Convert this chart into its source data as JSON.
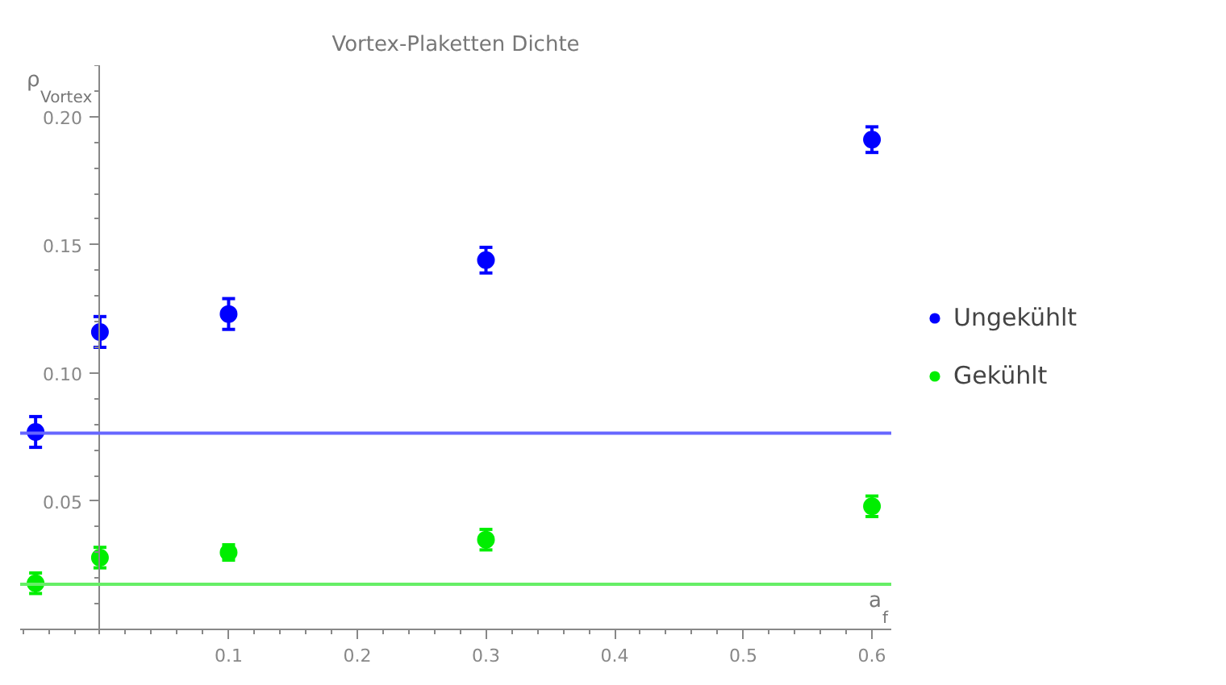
{
  "chart_data": {
    "type": "scatter",
    "title": "Vortex-Plaketten Dichte",
    "xlabel": "a$_{f}$",
    "ylabel": "ρ$_{Vortex}$",
    "x": [
      -0.05,
      0,
      0.1,
      0.3,
      0.6
    ],
    "series": [
      {
        "name": "Ungekühlt",
        "color": "#0000ff",
        "values": [
          0.077,
          0.116,
          0.123,
          0.144,
          0.191
        ],
        "errors": [
          0.006,
          0.006,
          0.006,
          0.005,
          0.005
        ]
      },
      {
        "name": "Gekühlt",
        "color": "#00ee00",
        "values": [
          0.018,
          0.028,
          0.03,
          0.035,
          0.048
        ],
        "errors": [
          0.004,
          0.004,
          0.003,
          0.004,
          0.004
        ]
      }
    ],
    "ref_lines": [
      {
        "axis": "y",
        "value": 0.0765,
        "color": "#6666ff"
      },
      {
        "axis": "y",
        "value": 0.0176,
        "color": "#66ee66"
      }
    ],
    "xlim": [
      -0.062,
      0.615
    ],
    "ylim": [
      0,
      0.22
    ],
    "xticks": [
      0.1,
      0.2,
      0.3,
      0.4,
      0.5,
      0.6
    ],
    "yticks": [
      0.05,
      {
        "value": 0.1,
        "label": "0.10"
      },
      0.15,
      {
        "value": 0.2,
        "label": "0.20"
      }
    ],
    "marker": "circle",
    "grid": false,
    "legend": "right"
  }
}
